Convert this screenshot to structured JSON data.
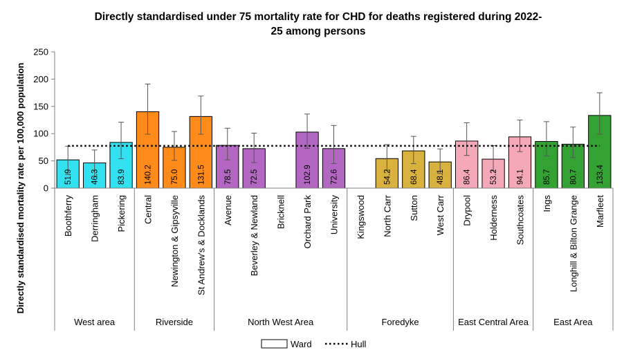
{
  "chart_data": {
    "type": "bar",
    "title_line1": "Directly standardised under 75 mortality rate for CHD for deaths registered during 2022-",
    "title_line2": "25 among persons",
    "ylabel": "Directly standardised mortality rate per 100,000 population",
    "ylim": [
      0,
      250
    ],
    "yticks": [
      0,
      50,
      100,
      150,
      200,
      250
    ],
    "grid": false,
    "legend": {
      "placement": "bottom",
      "bar_label": "Ward",
      "line_label": "Hull"
    },
    "hull_value": 77.5,
    "groups": [
      {
        "name": "West area",
        "color": "#33e0f0",
        "wards": [
          {
            "name": "Boothferry",
            "value": 51.9,
            "ci": [
              25,
              77
            ]
          },
          {
            "name": "Derringham",
            "value": 46.3,
            "ci": [
              22,
              70
            ]
          },
          {
            "name": "Pickering",
            "value": 83.9,
            "ci": [
              54,
              121
            ]
          }
        ]
      },
      {
        "name": "Riverside",
        "color": "#ff8c1a",
        "wards": [
          {
            "name": "Central",
            "value": 140.2,
            "ci": [
              99,
              191
            ]
          },
          {
            "name": "Newington & Gipsyville",
            "value": 75.0,
            "ci": [
              51,
              104
            ]
          },
          {
            "name": "St Andrew's & Docklands",
            "value": 131.5,
            "ci": [
              99,
              169
            ]
          }
        ]
      },
      {
        "name": "North West Area",
        "color": "#b366c2",
        "wards": [
          {
            "name": "Avenue",
            "value": 78.5,
            "ci": [
              52,
              110
            ]
          },
          {
            "name": "Beverley & Newland",
            "value": 72.5,
            "ci": [
              47,
              101
            ]
          },
          {
            "name": "Bricknell",
            "value": null,
            "ci": null
          },
          {
            "name": "Orchard Park",
            "value": 102.9,
            "ci": [
              73,
              136
            ]
          },
          {
            "name": "University",
            "value": 72.6,
            "ci": [
              45,
              115
            ]
          }
        ]
      },
      {
        "name": "Foredyke",
        "color": "#d9b13f",
        "wards": [
          {
            "name": "Kingswood",
            "value": null,
            "ci": null
          },
          {
            "name": "North Carr",
            "value": 54.2,
            "ci": [
              33,
              80
            ]
          },
          {
            "name": "Sutton",
            "value": 68.4,
            "ci": [
              45,
              95
            ]
          },
          {
            "name": "West Carr",
            "value": 48.1,
            "ci": [
              27,
              72
            ]
          }
        ]
      },
      {
        "name": "East Central Area",
        "color": "#f5a8b8",
        "wards": [
          {
            "name": "Drypool",
            "value": 86.4,
            "ci": [
              60,
              120
            ]
          },
          {
            "name": "Holderness",
            "value": 53.2,
            "ci": [
              32,
              78
            ]
          },
          {
            "name": "Southcoates",
            "value": 94.1,
            "ci": [
              67,
              125
            ]
          }
        ]
      },
      {
        "name": "East Area",
        "color": "#34a232",
        "wards": [
          {
            "name": "Ings",
            "value": 85.7,
            "ci": [
              59,
              122
            ]
          },
          {
            "name": "Longhill & Bilton Grange",
            "value": 80.7,
            "ci": [
              56,
              112
            ]
          },
          {
            "name": "Marfleet",
            "value": 133.4,
            "ci": [
              99,
              175
            ]
          }
        ]
      }
    ]
  }
}
